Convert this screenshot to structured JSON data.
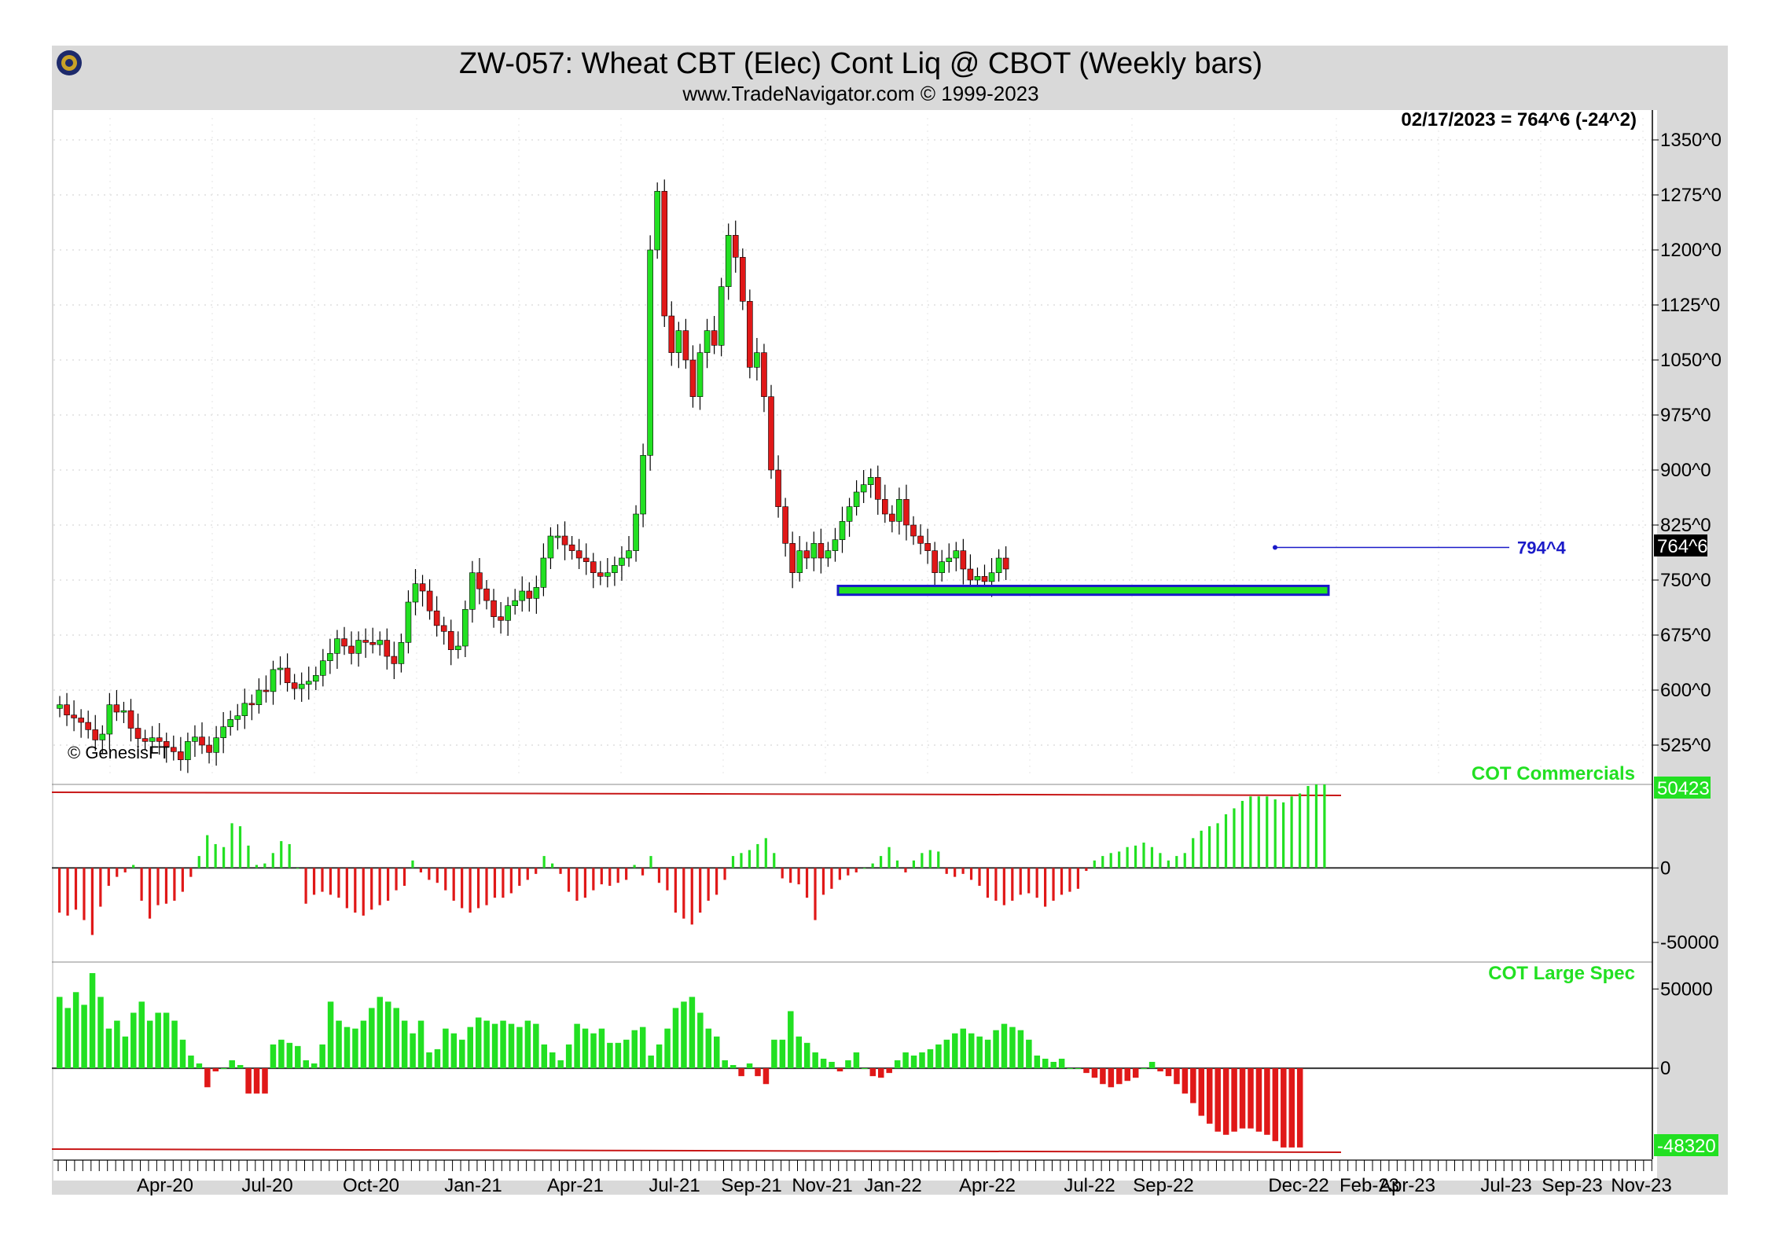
{
  "header": {
    "title": "ZW-057:  Wheat CBT (Elec) Cont Liq @ CBOT  (Weekly bars)",
    "subtitle": "www.TradeNavigator.com © 1999-2023"
  },
  "chart_data": [
    {
      "type": "candlestick",
      "panel": "price",
      "last_label": "02/17/2023 = 764^6 (-24^2)",
      "copyright": "© GenesisFT",
      "y_ticks": [
        "1350^0",
        "1275^0",
        "1200^0",
        "1125^0",
        "1050^0",
        "975^0",
        "900^0",
        "825^0",
        "750^0",
        "675^0",
        "600^0",
        "525^0"
      ],
      "y_tick_values": [
        1350,
        1275,
        1200,
        1125,
        1050,
        975,
        900,
        825,
        750,
        675,
        600,
        525
      ],
      "ylim": [
        480,
        1380
      ],
      "current_price_label": "764^6",
      "current_price": 764.75,
      "resistance_line": {
        "label": "794^4",
        "value": 794.5
      },
      "support_zone": {
        "low": 730,
        "high": 742
      },
      "grid": true,
      "weekly_closes": [
        580,
        566,
        562,
        556,
        546,
        532,
        540,
        580,
        570,
        572,
        548,
        534,
        530,
        535,
        530,
        522,
        516,
        505,
        530,
        536,
        525,
        515,
        535,
        550,
        560,
        565,
        582,
        580,
        600,
        598,
        628,
        630,
        610,
        602,
        608,
        612,
        620,
        640,
        650,
        670,
        660,
        650,
        668,
        665,
        662,
        668,
        646,
        636,
        665,
        720,
        745,
        735,
        708,
        688,
        680,
        655,
        660,
        710,
        760,
        738,
        722,
        700,
        695,
        715,
        722,
        735,
        725,
        740,
        780,
        810,
        810,
        798,
        790,
        780,
        775,
        760,
        755,
        760,
        770,
        780,
        790,
        840,
        920,
        1200,
        1280,
        1110,
        1060,
        1090,
        1050,
        1000,
        1060,
        1090,
        1070,
        1150,
        1220,
        1190,
        1130,
        1040,
        1060,
        1000,
        900,
        850,
        800,
        760,
        790,
        780,
        800,
        780,
        790,
        805,
        830,
        850,
        870,
        880,
        890,
        860,
        840,
        830,
        860,
        825,
        810,
        800,
        790,
        760,
        775,
        780,
        790,
        765,
        750,
        755,
        748,
        760,
        780,
        765
      ],
      "x_ticks": [
        "Apr-20",
        "Jul-20",
        "Oct-20",
        "Jan-21",
        "Apr-21",
        "Jul-21",
        "Sep-21",
        "Nov-21",
        "Jan-22",
        "Apr-22",
        "Jul-22",
        "Sep-22",
        "Dec-22",
        "Feb-23",
        "Apr-23",
        "Jul-23",
        "Sep-23",
        "Nov-23"
      ]
    },
    {
      "type": "bar",
      "panel": "cot_commercials",
      "title": "COT Commercials",
      "value_label": "50423",
      "y_ticks": [
        "0",
        "-50000"
      ],
      "y_tick_values": [
        0,
        -50000
      ],
      "ylim": [
        -60000,
        55000
      ],
      "values": [
        -30000,
        -32000,
        -28000,
        -35000,
        -45000,
        -26000,
        -12000,
        -6000,
        -3000,
        2000,
        -22000,
        -34000,
        -25000,
        -24000,
        -22000,
        -16000,
        -6000,
        8000,
        22000,
        16000,
        14000,
        30000,
        28000,
        15000,
        2000,
        3000,
        10000,
        18000,
        16000,
        0,
        -24000,
        -18000,
        -16000,
        -18000,
        -20000,
        -27000,
        -30000,
        -32000,
        -28000,
        -25000,
        -22000,
        -15000,
        -12000,
        5000,
        -3000,
        -8000,
        -10000,
        -15000,
        -22000,
        -27000,
        -30000,
        -27000,
        -25000,
        -20000,
        -20000,
        -17000,
        -12000,
        -8000,
        -4000,
        8000,
        3000,
        -4000,
        -16000,
        -22000,
        -20000,
        -15000,
        -11000,
        -12000,
        -10000,
        -8000,
        2000,
        -5000,
        8000,
        -10000,
        -15000,
        -30000,
        -34000,
        -38000,
        -30000,
        -22000,
        -18000,
        -8000,
        8000,
        10000,
        12000,
        16000,
        20000,
        10000,
        -7000,
        -10000,
        -11000,
        -20000,
        -35000,
        -18000,
        -14000,
        -8000,
        -5000,
        -3000,
        0,
        3000,
        8000,
        14000,
        5000,
        -3000,
        5000,
        10000,
        12000,
        11000,
        -4000,
        -6000,
        -4000,
        -8000,
        -12000,
        -20000,
        -22000,
        -25000,
        -22000,
        -18000,
        -17000,
        -20000,
        -26000,
        -22000,
        -18000,
        -16000,
        -14000,
        -2000,
        5000,
        8000,
        10000,
        11000,
        14000,
        15000,
        17000,
        14000,
        10000,
        5000,
        8000,
        10000,
        20000,
        25000,
        28000,
        30000,
        36000,
        40000,
        45000,
        48000,
        48000,
        48000,
        46000,
        44000,
        48000,
        50000,
        55000,
        56000,
        56000
      ]
    },
    {
      "type": "bar",
      "panel": "cot_large_spec",
      "title": "COT Large Spec",
      "value_label": "-48320",
      "y_ticks": [
        "50000",
        "0"
      ],
      "y_tick_values": [
        50000,
        0
      ],
      "ylim": [
        -55000,
        65000
      ],
      "values": [
        45000,
        38000,
        48000,
        40000,
        60000,
        45000,
        25000,
        30000,
        20000,
        35000,
        42000,
        30000,
        35000,
        35000,
        30000,
        18000,
        8000,
        3000,
        -12000,
        -2000,
        0,
        5000,
        2000,
        -16000,
        -16000,
        -16000,
        15000,
        18000,
        16000,
        14000,
        5000,
        3000,
        15000,
        42000,
        30000,
        26000,
        25000,
        30000,
        38000,
        45000,
        42000,
        38000,
        30000,
        22000,
        30000,
        10000,
        12000,
        25000,
        22000,
        18000,
        26000,
        32000,
        30000,
        28000,
        30000,
        28000,
        26000,
        30000,
        28000,
        15000,
        10000,
        5000,
        15000,
        28000,
        25000,
        22000,
        25000,
        16000,
        16000,
        18000,
        24000,
        26000,
        8000,
        15000,
        25000,
        38000,
        42000,
        45000,
        35000,
        25000,
        20000,
        5000,
        2000,
        -5000,
        3000,
        -5000,
        -10000,
        18000,
        18000,
        36000,
        20000,
        16000,
        10000,
        6000,
        4000,
        -2000,
        5000,
        10000,
        0,
        -5000,
        -6000,
        -3000,
        5000,
        10000,
        8000,
        10000,
        12000,
        15000,
        18000,
        22000,
        25000,
        22000,
        20000,
        18000,
        24000,
        28000,
        26000,
        24000,
        18000,
        8000,
        6000,
        4000,
        6000,
        0,
        0,
        -3000,
        -6000,
        -10000,
        -12000,
        -10000,
        -8000,
        -6000,
        0,
        4000,
        -2000,
        -5000,
        -10000,
        -16000,
        -22000,
        -30000,
        -35000,
        -40000,
        -42000,
        -40000,
        -38000,
        -38000,
        -40000,
        -42000,
        -46000,
        -50000,
        -50000,
        -50000
      ]
    }
  ]
}
